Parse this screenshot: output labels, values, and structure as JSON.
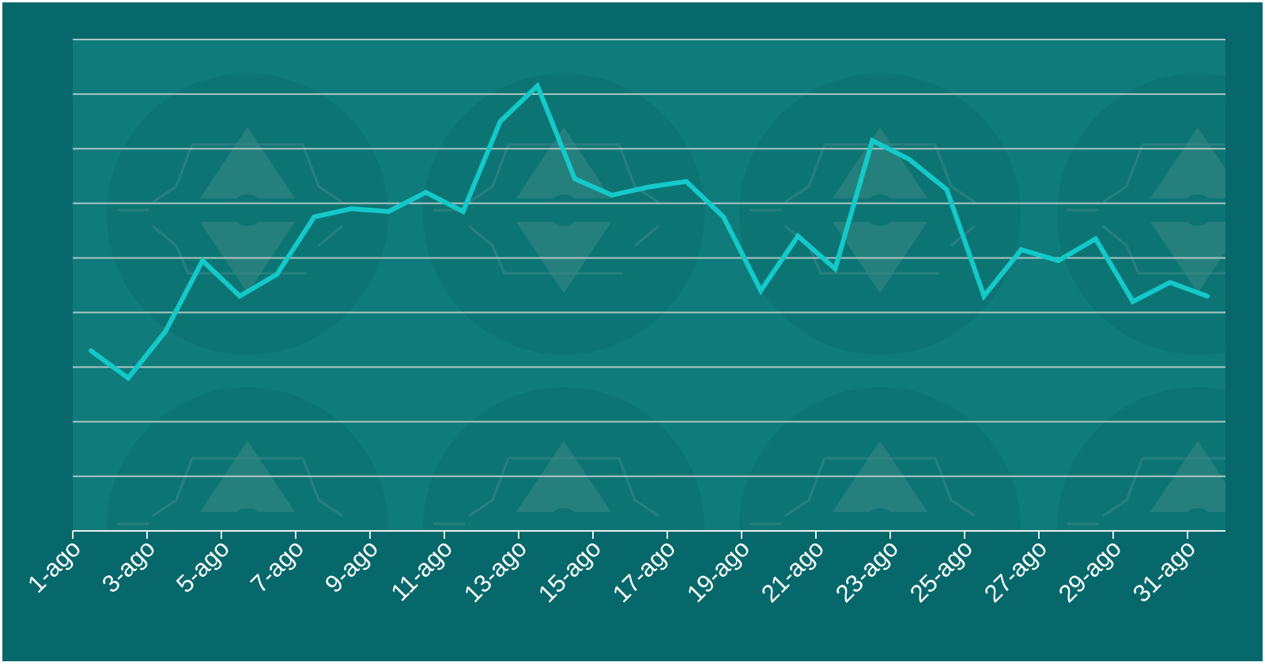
{
  "colors": {
    "background": "#07686b",
    "plot_area": "#0f7b7a",
    "gridline": "#c6d3d0",
    "line": "#14c9c9",
    "axis": "#e6f0ee",
    "watermark": "#0c7473",
    "watermark_mark": "#3b8785"
  },
  "watermark": {
    "icon": "location-pin-network-icon"
  },
  "chart_data": {
    "type": "line",
    "title": "",
    "xlabel": "",
    "ylabel": "",
    "grid": true,
    "legend": "none",
    "ylim": [
      0,
      9
    ],
    "x": [
      "1-ago",
      "2-ago",
      "3-ago",
      "4-ago",
      "5-ago",
      "6-ago",
      "7-ago",
      "8-ago",
      "9-ago",
      "10-ago",
      "11-ago",
      "12-ago",
      "13-ago",
      "14-ago",
      "15-ago",
      "16-ago",
      "17-ago",
      "18-ago",
      "19-ago",
      "20-ago",
      "21-ago",
      "22-ago",
      "23-ago",
      "24-ago",
      "25-ago",
      "26-ago",
      "27-ago",
      "28-ago",
      "29-ago",
      "30-ago",
      "31-ago"
    ],
    "tick_labels": [
      "1-ago",
      "3-ago",
      "5-ago",
      "7-ago",
      "9-ago",
      "11-ago",
      "13-ago",
      "15-ago",
      "17-ago",
      "19-ago",
      "21-ago",
      "23-ago",
      "25-ago",
      "27-ago",
      "29-ago",
      "31-ago"
    ],
    "series": [
      {
        "values": [
          3.3,
          2.8,
          3.65,
          4.95,
          4.3,
          4.7,
          5.75,
          5.9,
          5.85,
          6.2,
          5.85,
          7.5,
          8.15,
          6.45,
          6.15,
          6.3,
          6.4,
          5.75,
          4.4,
          5.4,
          4.8,
          7.15,
          6.8,
          6.25,
          4.3,
          5.15,
          4.95,
          5.35,
          4.2,
          4.55,
          4.3
        ]
      }
    ]
  }
}
